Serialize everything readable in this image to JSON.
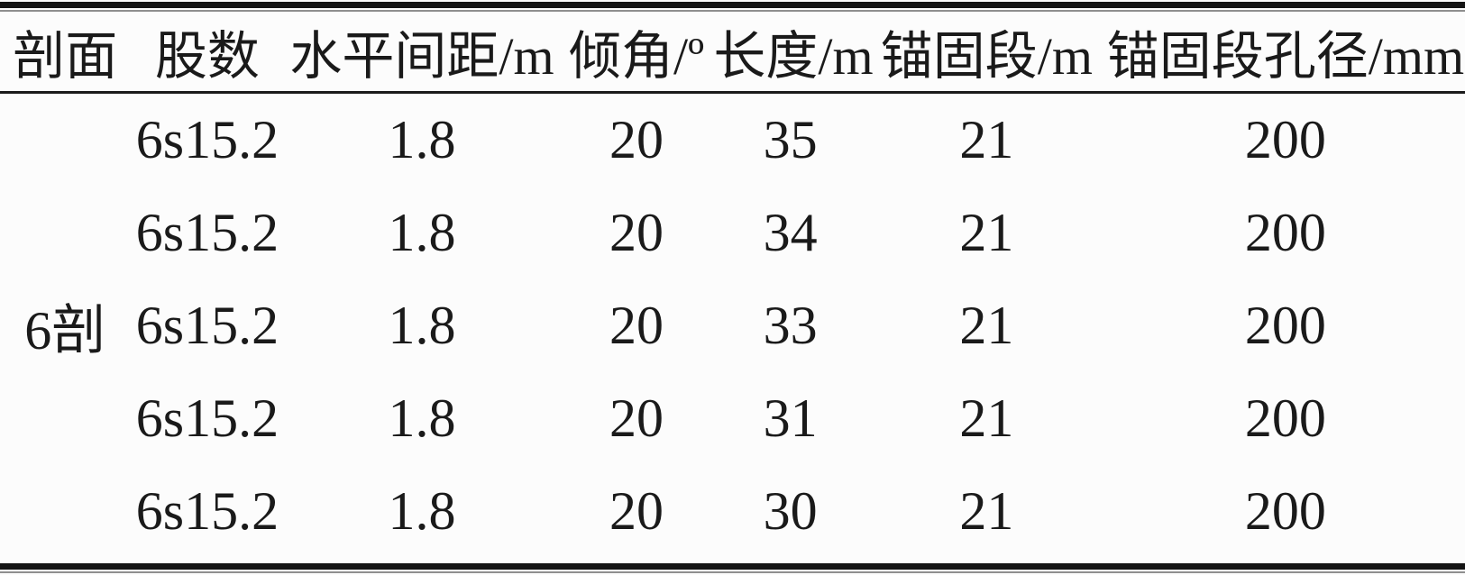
{
  "table": {
    "columns": [
      {
        "label": "剖面"
      },
      {
        "label": "股数"
      },
      {
        "label": "水平间距/m"
      },
      {
        "label": "倾角/º"
      },
      {
        "label": "长度/m"
      },
      {
        "label": "锚固段/m"
      },
      {
        "label": "锚固段孔径/mm"
      }
    ],
    "section_label": "6剖",
    "rows": [
      [
        "6s15.2",
        "1.8",
        "20",
        "35",
        "21",
        "200"
      ],
      [
        "6s15.2",
        "1.8",
        "20",
        "34",
        "21",
        "200"
      ],
      [
        "6s15.2",
        "1.8",
        "20",
        "33",
        "21",
        "200"
      ],
      [
        "6s15.2",
        "1.8",
        "20",
        "31",
        "21",
        "200"
      ],
      [
        "6s15.2",
        "1.8",
        "20",
        "30",
        "21",
        "200"
      ]
    ]
  },
  "colors": {
    "text": "#1a1a1a",
    "rule_thick": "#141414",
    "rule_thin": "#8f8f8f",
    "background": "#fcfcfc"
  }
}
